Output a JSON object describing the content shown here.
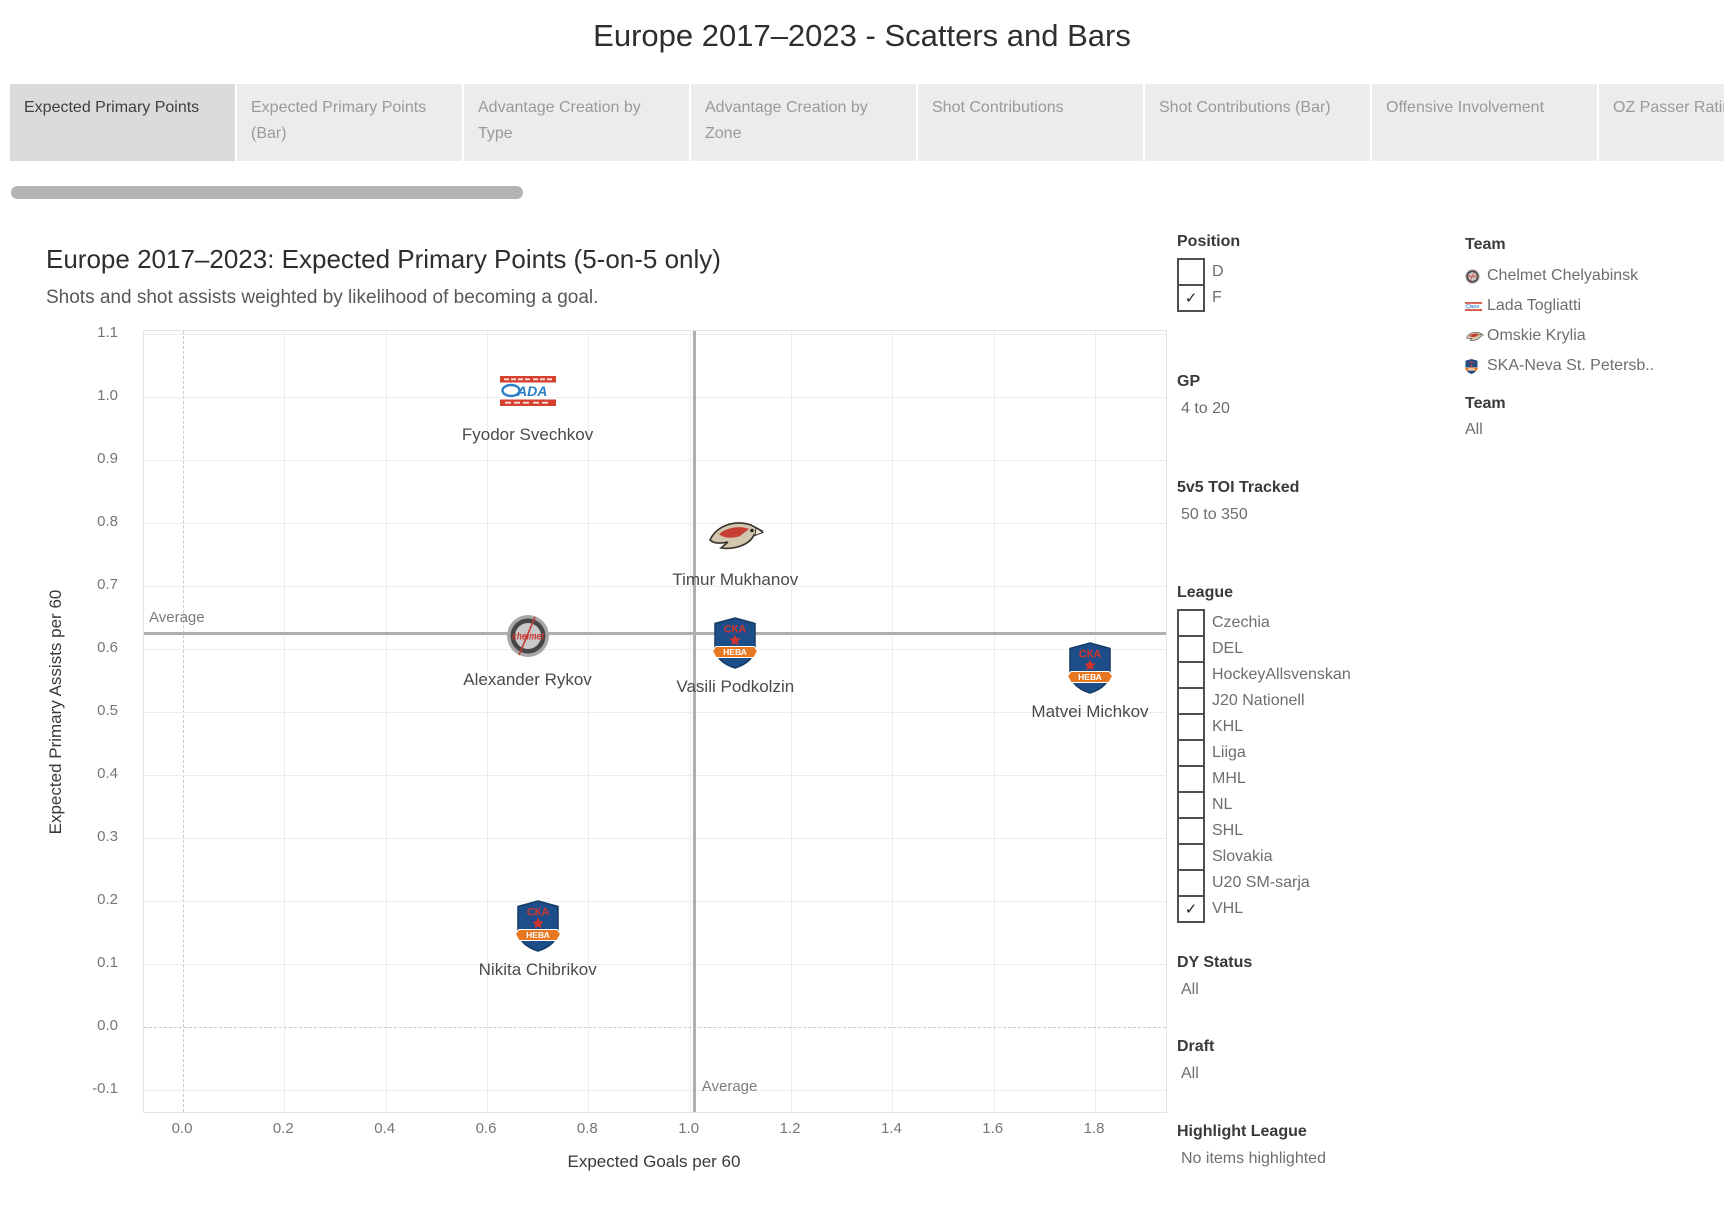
{
  "page_title": "Europe 2017–2023 - Scatters and Bars",
  "tabs": [
    {
      "label": "Expected Primary Points",
      "active": true
    },
    {
      "label": "Expected Primary Points (Bar)",
      "active": false
    },
    {
      "label": "Advantage Creation by Type",
      "active": false
    },
    {
      "label": "Advantage Creation by Zone",
      "active": false
    },
    {
      "label": "Shot Contributions",
      "active": false
    },
    {
      "label": "Shot Contributions (Bar)",
      "active": false
    },
    {
      "label": "Offensive Involvement",
      "active": false
    },
    {
      "label": "OZ Passer Rating",
      "active": false
    }
  ],
  "chart_data": {
    "type": "scatter",
    "title": "Europe 2017–2023: Expected Primary Points (5-on-5 only)",
    "subtitle": "Shots and shot assists weighted by likelihood of becoming a goal.",
    "xlabel": "Expected Goals per 60",
    "ylabel": "Expected Primary Assists per 60",
    "xlim": [
      -0.077,
      1.94
    ],
    "ylim": [
      -0.135,
      1.105
    ],
    "x_ticks": [
      0.0,
      0.2,
      0.4,
      0.6,
      0.8,
      1.0,
      1.2,
      1.4,
      1.6,
      1.8
    ],
    "y_ticks": [
      -0.1,
      0.0,
      0.1,
      0.2,
      0.3,
      0.4,
      0.5,
      0.6,
      0.7,
      0.8,
      0.9,
      1.0,
      1.1
    ],
    "x_average": 1.01,
    "y_average": 0.625,
    "average_label": "Average",
    "points": [
      {
        "name": "Fyodor Svechkov",
        "team": "Lada Togliatti",
        "icon": "lada-logo",
        "x": 0.68,
        "y": 1.01
      },
      {
        "name": "Timur Mukhanov",
        "team": "Omskie Krylia",
        "icon": "omskie-logo",
        "x": 1.09,
        "y": 0.78
      },
      {
        "name": "Alexander Rykov",
        "team": "Chelmet Chelyabinsk",
        "icon": "chelmet-logo",
        "x": 0.68,
        "y": 0.62
      },
      {
        "name": "Vasili Podkolzin",
        "team": "SKA-Neva St. Petersburg",
        "icon": "ska-neva-logo",
        "x": 1.09,
        "y": 0.61
      },
      {
        "name": "Matvei Michkov",
        "team": "SKA-Neva St. Petersburg",
        "icon": "ska-neva-logo",
        "x": 1.79,
        "y": 0.57
      },
      {
        "name": "Nikita Chibrikov",
        "team": "SKA-Neva St. Petersburg",
        "icon": "ska-neva-logo",
        "x": 0.7,
        "y": 0.16
      }
    ]
  },
  "filters": {
    "position": {
      "label": "Position",
      "options": [
        {
          "label": "D",
          "checked": false
        },
        {
          "label": "F",
          "checked": true
        }
      ]
    },
    "gp": {
      "label": "GP",
      "value": "4 to 20"
    },
    "toi": {
      "label": "5v5 TOI Tracked",
      "value": "50 to 350"
    },
    "league": {
      "label": "League",
      "options": [
        {
          "label": "Czechia",
          "checked": false
        },
        {
          "label": "DEL",
          "checked": false
        },
        {
          "label": "HockeyAllsvenskan",
          "checked": false
        },
        {
          "label": "J20 Nationell",
          "checked": false
        },
        {
          "label": "KHL",
          "checked": false
        },
        {
          "label": "Liiga",
          "checked": false
        },
        {
          "label": "MHL",
          "checked": false
        },
        {
          "label": "NL",
          "checked": false
        },
        {
          "label": "SHL",
          "checked": false
        },
        {
          "label": "Slovakia",
          "checked": false
        },
        {
          "label": "U20 SM-sarja",
          "checked": false
        },
        {
          "label": "VHL",
          "checked": true
        }
      ]
    },
    "dy_status": {
      "label": "DY Status",
      "value": "All"
    },
    "draft": {
      "label": "Draft",
      "value": "All"
    },
    "highlight_league": {
      "label": "Highlight League",
      "value": "No items highlighted"
    }
  },
  "legend": {
    "team": {
      "label": "Team",
      "items": [
        {
          "name": "Chelmet Chelyabinsk",
          "icon": "chelmet-logo"
        },
        {
          "name": "Lada Togliatti",
          "icon": "lada-logo"
        },
        {
          "name": "Omskie Krylia",
          "icon": "omskie-logo"
        },
        {
          "name": "SKA-Neva St. Petersb..",
          "icon": "ska-neva-logo"
        }
      ]
    },
    "team_filter": {
      "label": "Team",
      "value": "All"
    }
  },
  "colors": {
    "average_line": "#b0afaf",
    "grid": "#ececec",
    "tab_active_bg": "#dbdbdb",
    "tab_bg": "#ececec",
    "lada_red": "#d6402f",
    "lada_blue": "#2a7fc9",
    "chelmet_red": "#c7372f",
    "chelmet_silver": "#c9c9c9",
    "omskie_tan": "#d3c6ae",
    "omskie_red": "#c63f35",
    "ska_blue": "#1d4e89",
    "ska_red": "#d0342c",
    "ska_orange": "#e87722"
  }
}
